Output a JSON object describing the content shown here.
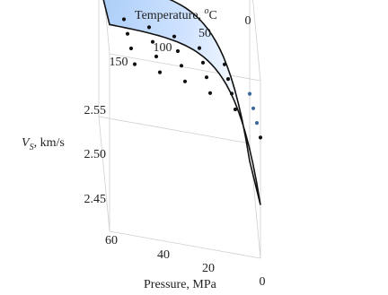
{
  "chart_data": {
    "type": "surface3d",
    "title": "",
    "zlabel_main": "V",
    "zlabel_sub": "S",
    "zlabel_rest": ", km/s",
    "ylabel_main": "Temperature, ",
    "ylabel_sup": "o",
    "ylabel_rest": "C",
    "xlabel": "Pressure, MPa",
    "x_ticks": [
      "0",
      "20",
      "40",
      "60"
    ],
    "y_ticks": [
      "0",
      "50",
      "100",
      "150"
    ],
    "z_ticks": [
      "2.45",
      "2.50",
      "2.55"
    ],
    "xlim": [
      0,
      60
    ],
    "ylim": [
      0,
      150
    ],
    "zlim": [
      2.43,
      2.58
    ],
    "surface_color": "#cfe3ff",
    "surface_color_light": "#ffffff",
    "point_color": "#111111",
    "point_color_hidden": "#3c6a9a",
    "points": [
      {
        "p": 0,
        "t": 0,
        "v": 2.532
      },
      {
        "p": 10,
        "t": 0,
        "v": 2.552
      },
      {
        "p": 20,
        "t": 0,
        "v": 2.562
      },
      {
        "p": 30,
        "t": 0,
        "v": 2.568
      },
      {
        "p": 40,
        "t": 0,
        "v": 2.572
      },
      {
        "p": 50,
        "t": 0,
        "v": 2.575
      },
      {
        "p": 0,
        "t": 50,
        "v": 2.512
      },
      {
        "p": 10,
        "t": 50,
        "v": 2.533
      },
      {
        "p": 20,
        "t": 50,
        "v": 2.543
      },
      {
        "p": 30,
        "t": 50,
        "v": 2.549
      },
      {
        "p": 40,
        "t": 50,
        "v": 2.553
      },
      {
        "p": 50,
        "t": 50,
        "v": 2.556
      },
      {
        "p": 0,
        "t": 100,
        "v": 2.492
      },
      {
        "p": 10,
        "t": 100,
        "v": 2.513
      },
      {
        "p": 20,
        "t": 100,
        "v": 2.523
      },
      {
        "p": 30,
        "t": 100,
        "v": 2.529
      },
      {
        "p": 40,
        "t": 100,
        "v": 2.533
      },
      {
        "p": 50,
        "t": 100,
        "v": 2.536
      },
      {
        "p": 0,
        "t": 150,
        "v": 2.472
      },
      {
        "p": 10,
        "t": 150,
        "v": 2.493
      },
      {
        "p": 20,
        "t": 150,
        "v": 2.503
      },
      {
        "p": 30,
        "t": 150,
        "v": 2.509
      },
      {
        "p": 40,
        "t": 150,
        "v": 2.513
      },
      {
        "p": 50,
        "t": 150,
        "v": 2.516
      }
    ]
  }
}
